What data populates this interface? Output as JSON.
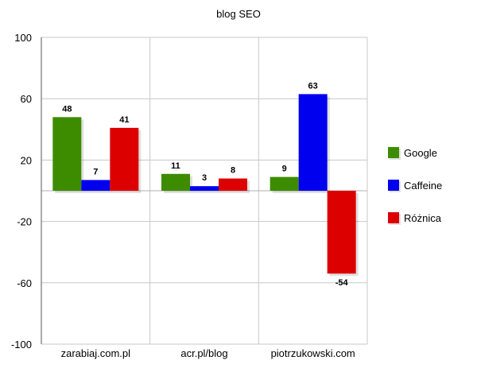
{
  "chart_data": {
    "type": "bar",
    "title": "blog SEO",
    "categories": [
      "zarabiaj.com.pl",
      "acr.pl/blog",
      "piotrzukowski.com"
    ],
    "series": [
      {
        "name": "Google",
        "values": [
          48,
          11,
          9
        ],
        "color": "#3d8c00"
      },
      {
        "name": "Caffeine",
        "values": [
          7,
          3,
          63
        ],
        "color": "#0000ee"
      },
      {
        "name": "Różnica",
        "values": [
          41,
          8,
          -54
        ],
        "color": "#dd0000"
      }
    ],
    "ylim": [
      -100,
      100
    ],
    "yticks": [
      "100",
      "60",
      "20",
      "-20",
      "-60",
      "-100"
    ],
    "grid": true,
    "legend_position": "right"
  }
}
